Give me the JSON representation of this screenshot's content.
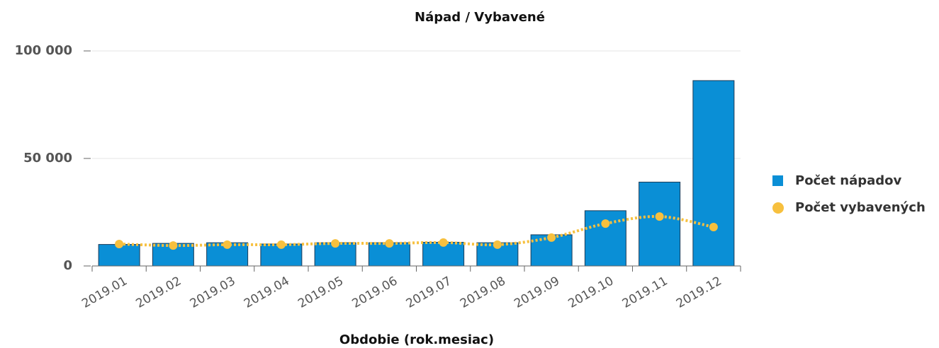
{
  "chart_data": {
    "type": "bar-line",
    "title": "Nápad / Vybavené",
    "x_label": "Obdobie (rok.mesiac)",
    "categories": [
      "2019.01",
      "2019.02",
      "2019.03",
      "2019.04",
      "2019.05",
      "2019.06",
      "2019.07",
      "2019.08",
      "2019.09",
      "2019.10",
      "2019.11",
      "2019.12"
    ],
    "series": [
      {
        "name": "Počet nápadov",
        "type": "bar",
        "color": "#0a8fd6",
        "values": [
          10000,
          10500,
          10800,
          10200,
          10800,
          10800,
          11000,
          10800,
          14500,
          25700,
          39000,
          86200
        ]
      },
      {
        "name": "Počet vybavených",
        "type": "line",
        "color": "#f7c03e",
        "values": [
          10200,
          9500,
          9900,
          9900,
          10500,
          10500,
          10900,
          9900,
          13200,
          19700,
          23000,
          18100
        ]
      }
    ],
    "ylim": [
      0,
      100000
    ],
    "yticks": [
      {
        "value": 0,
        "label": "0"
      },
      {
        "value": 50000,
        "label": "50 000"
      },
      {
        "value": 100000,
        "label": "100 000"
      }
    ],
    "grid": true,
    "legend": "right"
  }
}
